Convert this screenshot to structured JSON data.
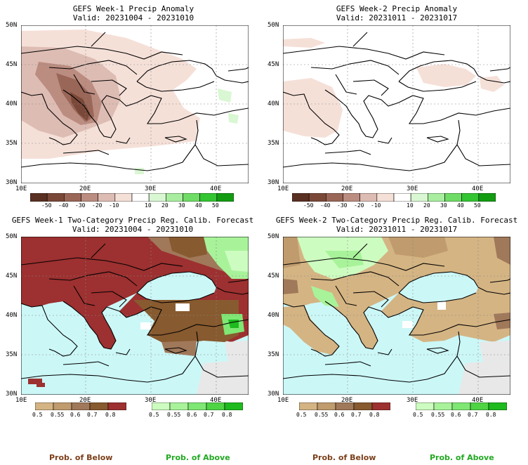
{
  "panels": [
    {
      "title": "GEFS Week-1 Precip Anomaly",
      "valid": "Valid: 20231004 - 20231010"
    },
    {
      "title": "GEFS Week-2 Precip Anomaly",
      "valid": "Valid: 20231011 - 20231017"
    },
    {
      "title": "GEFS Week-1 Two-Category Precip Reg. Calib. Forecast",
      "valid": "Valid: 20231004 - 20231010"
    },
    {
      "title": "GEFS Week-2 Two-Category Precip Reg. Calib. Forecast",
      "valid": "Valid: 20231011 - 20231017"
    }
  ],
  "lat_labels": [
    "50N",
    "45N",
    "40N",
    "35N",
    "30N"
  ],
  "lon_labels": [
    "10E",
    "20E",
    "30E",
    "40E"
  ],
  "anomaly_colorbar": {
    "labels": [
      "-50",
      "-40",
      "-30",
      "-20",
      "-10",
      "10",
      "20",
      "30",
      "40",
      "50"
    ],
    "colors": [
      "#5a3023",
      "#7a4838",
      "#9a6658",
      "#bb8c80",
      "#ddbcb3",
      "#f5e0d8",
      "#ffffff",
      "#d9f7d2",
      "#a9eea0",
      "#6fdc66",
      "#34c532",
      "#139c12"
    ]
  },
  "below_colorbar": {
    "labels": [
      "0.5",
      "0.55",
      "0.6",
      "0.7",
      "0.8"
    ],
    "colors": [
      "#d4b483",
      "#bf9b6d",
      "#a0785a",
      "#875a2f",
      "#9d3030"
    ]
  },
  "above_colorbar": {
    "labels": [
      "0.5",
      "0.55",
      "0.6",
      "0.7",
      "0.8"
    ],
    "colors": [
      "#cdfcc0",
      "#a8f39a",
      "#7fe773",
      "#4fd444",
      "#1eba1e"
    ]
  },
  "legend": {
    "below": "Prob. of Below",
    "above": "Prob. of Above"
  },
  "colors": {
    "sea": "#ccf7f7",
    "land_gray": "#e8e8e8",
    "below_color": "#7b3f1a",
    "above_color": "#22a822"
  }
}
